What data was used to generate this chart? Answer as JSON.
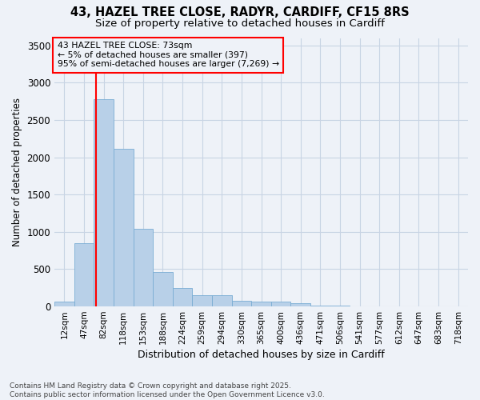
{
  "title_line1": "43, HAZEL TREE CLOSE, RADYR, CARDIFF, CF15 8RS",
  "title_line2": "Size of property relative to detached houses in Cardiff",
  "xlabel": "Distribution of detached houses by size in Cardiff",
  "ylabel": "Number of detached properties",
  "categories": [
    "12sqm",
    "47sqm",
    "82sqm",
    "118sqm",
    "153sqm",
    "188sqm",
    "224sqm",
    "259sqm",
    "294sqm",
    "330sqm",
    "365sqm",
    "400sqm",
    "436sqm",
    "471sqm",
    "506sqm",
    "541sqm",
    "577sqm",
    "612sqm",
    "647sqm",
    "683sqm",
    "718sqm"
  ],
  "values": [
    60,
    850,
    2780,
    2110,
    1040,
    460,
    245,
    155,
    155,
    80,
    65,
    60,
    40,
    15,
    10,
    5,
    5,
    2,
    1,
    1,
    1
  ],
  "bar_color": "#b8d0e8",
  "bar_edge_color": "#7aadd4",
  "grid_color": "#c8d4e4",
  "background_color": "#eef2f8",
  "vline_x_index": 1.62,
  "vline_color": "red",
  "annotation_text": "43 HAZEL TREE CLOSE: 73sqm\n← 5% of detached houses are smaller (397)\n95% of semi-detached houses are larger (7,269) →",
  "annotation_box_color": "red",
  "ylim": [
    0,
    3600
  ],
  "yticks": [
    0,
    500,
    1000,
    1500,
    2000,
    2500,
    3000,
    3500
  ],
  "footer_line1": "Contains HM Land Registry data © Crown copyright and database right 2025.",
  "footer_line2": "Contains public sector information licensed under the Open Government Licence v3.0."
}
